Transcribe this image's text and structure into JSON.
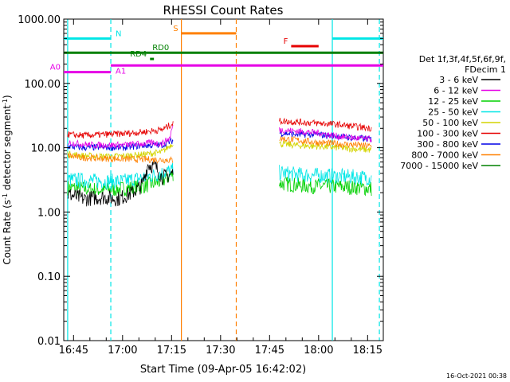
{
  "chart_data": {
    "type": "line",
    "title": "RHESSI Count Rates",
    "xlabel": "Start Time (09-Apr-05 16:42:02)",
    "ylabel": "Count Rate (s⁻¹ detector segment⁻¹)",
    "ylabel_main": "Count Rate (s",
    "ylabel_exp1": "-1",
    "ylabel_mid": " detector segment",
    "ylabel_exp2": "-1",
    "ylabel_end": ")",
    "y_scale": "log",
    "ylim": [
      0.01,
      1000
    ],
    "xlim_minutes": [
      16.7,
      18.33
    ],
    "x_ticks": [
      {
        "t": 16.75,
        "label": "16:45"
      },
      {
        "t": 17.0,
        "label": "17:00"
      },
      {
        "t": 17.25,
        "label": "17:15"
      },
      {
        "t": 17.5,
        "label": "17:30"
      },
      {
        "t": 17.75,
        "label": "17:45"
      },
      {
        "t": 18.0,
        "label": "18:00"
      },
      {
        "t": 18.25,
        "label": "18:15"
      }
    ],
    "y_ticks": [
      {
        "v": 1000,
        "label": "1000.00"
      },
      {
        "v": 100,
        "label": "100.00"
      },
      {
        "v": 10,
        "label": "10.00"
      },
      {
        "v": 1,
        "label": "1.00"
      },
      {
        "v": 0.1,
        "label": "0.10"
      },
      {
        "v": 0.01,
        "label": "0.01"
      }
    ],
    "legend": {
      "placement": "right",
      "header": [
        "Det 1f,3f,4f,5f,6f,9f,",
        "FDecim 1"
      ],
      "entries": [
        {
          "label": "3 - 6 keV",
          "color": "#000000"
        },
        {
          "label": "6 - 12 keV",
          "color": "#e600e6"
        },
        {
          "label": "12 - 25 keV",
          "color": "#00d000"
        },
        {
          "label": "25 - 50 keV",
          "color": "#00e6e6"
        },
        {
          "label": "50 - 100 keV",
          "color": "#d4d400"
        },
        {
          "label": "100 - 300 keV",
          "color": "#e60000"
        },
        {
          "label": "300 - 800 keV",
          "color": "#0000e6"
        },
        {
          "label": "800 - 7000 keV",
          "color": "#ff8000"
        },
        {
          "label": "7000 - 15000 keV",
          "color": "#008000"
        }
      ]
    },
    "series": [
      {
        "name": "3 - 6 keV",
        "color": "#000000",
        "segments": [
          {
            "x": [
              16.72,
              16.8,
              16.9,
              16.98,
              17.05,
              17.1,
              17.13,
              17.17,
              17.2,
              17.23,
              17.26
            ],
            "y": [
              1.9,
              1.6,
              1.7,
              1.6,
              2.0,
              2.6,
              5.5,
              5.0,
              3.5,
              3.6,
              4.2
            ]
          }
        ]
      },
      {
        "name": "6 - 12 keV",
        "color": "#e600e6",
        "segments": [
          {
            "x": [
              16.72,
              16.85,
              17.0,
              17.1,
              17.15,
              17.2,
              17.24,
              17.26
            ],
            "y": [
              12.0,
              11.0,
              11.0,
              11.5,
              12.0,
              11.5,
              14.0,
              24.0
            ]
          },
          {
            "x": [
              17.8,
              17.9,
              18.0,
              18.1,
              18.2,
              18.27
            ],
            "y": [
              19.0,
              18.0,
              17.0,
              15.0,
              14.0,
              13.5
            ]
          }
        ]
      },
      {
        "name": "12 - 25 keV",
        "color": "#00d000",
        "segments": [
          {
            "x": [
              16.72,
              16.8,
              16.9,
              17.0,
              17.1,
              17.2,
              17.26
            ],
            "y": [
              2.4,
              2.3,
              2.2,
              2.3,
              2.5,
              3.0,
              4.0
            ]
          },
          {
            "x": [
              17.8,
              17.9,
              18.0,
              18.1,
              18.2,
              18.27
            ],
            "y": [
              2.8,
              2.6,
              2.5,
              2.5,
              2.4,
              2.3
            ]
          }
        ]
      },
      {
        "name": "25 - 50 keV",
        "color": "#00e6e6",
        "segments": [
          {
            "x": [
              16.72,
              16.8,
              16.9,
              17.0,
              17.1,
              17.2,
              17.26
            ],
            "y": [
              3.2,
              3.1,
              3.0,
              3.0,
              3.4,
              4.0,
              4.5
            ]
          },
          {
            "x": [
              17.8,
              17.9,
              18.0,
              18.1,
              18.2,
              18.27
            ],
            "y": [
              4.1,
              3.8,
              3.7,
              3.6,
              3.5,
              3.4
            ]
          }
        ]
      },
      {
        "name": "50 - 100 keV",
        "color": "#d4d400",
        "segments": [
          {
            "x": [
              16.72,
              16.8,
              16.9,
              17.0,
              17.1,
              17.2,
              17.26
            ],
            "y": [
              8.0,
              7.5,
              7.3,
              7.4,
              7.8,
              8.5,
              12.0
            ]
          },
          {
            "x": [
              17.8,
              17.9,
              18.0,
              18.1,
              18.2,
              18.27
            ],
            "y": [
              11.5,
              10.8,
              10.5,
              10.0,
              9.5,
              9.2
            ]
          }
        ]
      },
      {
        "name": "100 - 300 keV",
        "color": "#e60000",
        "segments": [
          {
            "x": [
              16.72,
              16.8,
              16.9,
              17.0,
              17.1,
              17.2,
              17.26
            ],
            "y": [
              16.0,
              15.5,
              16.0,
              16.5,
              17.5,
              19.0,
              24.0
            ]
          },
          {
            "x": [
              17.8,
              17.9,
              18.0,
              18.1,
              18.2,
              18.27
            ],
            "y": [
              26.0,
              25.0,
              24.0,
              23.0,
              21.0,
              20.0
            ]
          }
        ]
      },
      {
        "name": "300 - 800 keV",
        "color": "#0000e6",
        "segments": [
          {
            "x": [
              16.72,
              16.8,
              16.9,
              17.0,
              17.1,
              17.2,
              17.26
            ],
            "y": [
              10.5,
              10.0,
              10.2,
              10.0,
              10.8,
              11.0,
              13.0
            ]
          },
          {
            "x": [
              17.8,
              17.9,
              18.0,
              18.1,
              18.2,
              18.27
            ],
            "y": [
              17.0,
              16.0,
              16.0,
              15.0,
              14.0,
              13.5
            ]
          }
        ]
      },
      {
        "name": "800 - 7000 keV",
        "color": "#ff8000",
        "segments": [
          {
            "x": [
              16.72,
              16.8,
              16.9,
              17.0,
              17.1,
              17.2,
              17.26
            ],
            "y": [
              7.5,
              7.0,
              6.8,
              6.7,
              6.6,
              6.5,
              6.4
            ]
          },
          {
            "x": [
              17.8,
              17.9,
              18.0,
              18.1,
              18.2,
              18.27
            ],
            "y": [
              14.0,
              13.0,
              12.0,
              11.5,
              11.0,
              10.5
            ]
          }
        ]
      },
      {
        "name": "7000 - 15000 keV",
        "color": "#008000",
        "segments": []
      }
    ],
    "attenuator_bars": [
      {
        "label": "N",
        "color": "#00e6e6",
        "y": 500,
        "ranges": [
          [
            16.7,
            16.94
          ],
          [
            18.07,
            18.33
          ]
        ]
      },
      {
        "label": "S",
        "color": "#ff8000",
        "y": 600,
        "ranges": [
          [
            17.3,
            17.58
          ]
        ]
      },
      {
        "label": "F",
        "color": "#e60000",
        "y": 380,
        "ranges": [
          [
            17.86,
            18.0
          ]
        ]
      },
      {
        "label": "RD0",
        "color": "#008000",
        "y": 300,
        "ranges": [
          [
            16.7,
            18.33
          ]
        ]
      },
      {
        "label": "RD4",
        "color": "#008000",
        "y": 240,
        "ranges": [
          [
            17.14,
            17.16
          ]
        ]
      },
      {
        "label": "A0",
        "color": "#e600e6",
        "y": 150,
        "ranges": [
          [
            16.7,
            16.94
          ]
        ]
      },
      {
        "label": "A1",
        "color": "#e600e6",
        "y": 190,
        "ranges": [
          [
            16.94,
            18.33
          ]
        ]
      }
    ],
    "vertical_lines": [
      {
        "t": 16.72,
        "color": "#00e6e6",
        "style": "solid"
      },
      {
        "t": 16.94,
        "color": "#00e6e6",
        "style": "dashed"
      },
      {
        "t": 17.3,
        "color": "#ff8000",
        "style": "solid"
      },
      {
        "t": 17.58,
        "color": "#ff8000",
        "style": "dashed"
      },
      {
        "t": 18.07,
        "color": "#00e6e6",
        "style": "solid"
      },
      {
        "t": 18.31,
        "color": "#00e6e6",
        "style": "dashed"
      }
    ],
    "grid": false,
    "timestamp": "16-Oct-2021 00:38"
  }
}
